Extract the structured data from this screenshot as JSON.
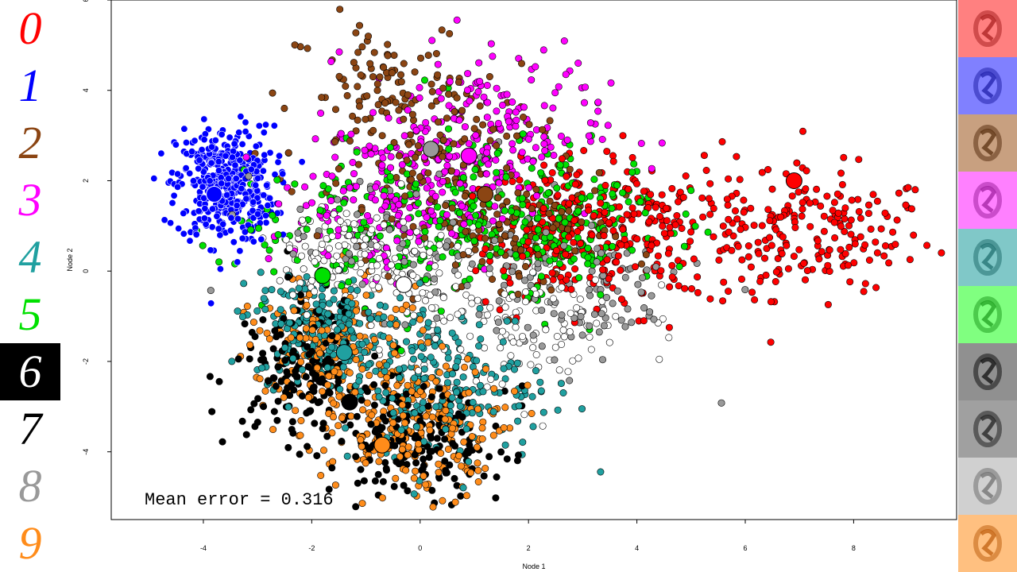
{
  "digit_labels": [
    {
      "digit": "0",
      "color": "#ff0000",
      "background": "#ffffff"
    },
    {
      "digit": "1",
      "color": "#0000ff",
      "background": "#ffffff"
    },
    {
      "digit": "2",
      "color": "#8b4513",
      "background": "#ffffff"
    },
    {
      "digit": "3",
      "color": "#ff00ff",
      "background": "#ffffff"
    },
    {
      "digit": "4",
      "color": "#20a0a0",
      "background": "#ffffff"
    },
    {
      "digit": "5",
      "color": "#00e000",
      "background": "#ffffff"
    },
    {
      "digit": "6",
      "color": "#ffffff",
      "background": "#000000"
    },
    {
      "digit": "7",
      "color": "#000000",
      "background": "#ffffff"
    },
    {
      "digit": "8",
      "color": "#999999",
      "background": "#ffffff"
    },
    {
      "digit": "9",
      "color": "#ff8c1a",
      "background": "#ffffff"
    }
  ],
  "prototype_tiles": [
    {
      "background": "#ff8080",
      "ink": "#aa2020"
    },
    {
      "background": "#8080ff",
      "ink": "#2020aa"
    },
    {
      "background": "#c8a080",
      "ink": "#5a3010"
    },
    {
      "background": "#ff80ff",
      "ink": "#a020a0"
    },
    {
      "background": "#80c8c8",
      "ink": "#207070"
    },
    {
      "background": "#80ff80",
      "ink": "#20a020"
    },
    {
      "background": "#909090",
      "ink": "#101010"
    },
    {
      "background": "#a0a0a0",
      "ink": "#202020"
    },
    {
      "background": "#d0d0d0",
      "ink": "#707070"
    },
    {
      "background": "#ffc080",
      "ink": "#c06010"
    }
  ],
  "annotation": "Mean error = 0.316",
  "chart_data": {
    "type": "scatter",
    "title": "",
    "xlabel": "Node 1",
    "ylabel": "Node 2",
    "xlim": [
      -5.7,
      9.9
    ],
    "ylim": [
      -5.5,
      6.0
    ],
    "xticks": [
      -4,
      -2,
      0,
      2,
      4,
      6,
      8
    ],
    "yticks": [
      -4,
      -2,
      0,
      2,
      4,
      6
    ],
    "grid": false,
    "legend": "none",
    "series": [
      {
        "color": "#ff0000",
        "centroid": [
          6.9,
          2.0
        ],
        "spread": [
          1.4,
          0.85
        ],
        "n": 520,
        "clusters": [
          [
            4.5,
            1.0,
            1.2,
            0.8
          ],
          [
            7.5,
            0.8,
            1.0,
            0.7
          ],
          [
            2.8,
            0.8,
            0.8,
            0.8
          ]
        ]
      },
      {
        "color": "#0000ff",
        "centroid": [
          -3.8,
          1.7
        ],
        "spread": [
          0.45,
          0.6
        ],
        "n": 420,
        "clusters": [
          [
            -3.6,
            1.9,
            0.45,
            0.65
          ]
        ]
      },
      {
        "color": "#8b4513",
        "centroid": [
          1.2,
          1.7
        ],
        "spread": [
          1.1,
          1.0
        ],
        "n": 360,
        "clusters": [
          [
            -0.5,
            4.0,
            0.9,
            0.8
          ],
          [
            0.5,
            2.0,
            1.2,
            1.0
          ],
          [
            2.0,
            0.8,
            0.8,
            0.6
          ]
        ]
      },
      {
        "color": "#ff00ff",
        "centroid": [
          0.9,
          2.55
        ],
        "spread": [
          1.0,
          1.0
        ],
        "n": 380,
        "clusters": [
          [
            1.2,
            3.2,
            1.1,
            0.9
          ],
          [
            -0.5,
            1.5,
            0.9,
            0.8
          ]
        ]
      },
      {
        "color": "#20a0a0",
        "centroid": [
          -1.4,
          -1.8
        ],
        "spread": [
          0.9,
          0.9
        ],
        "n": 430,
        "clusters": [
          [
            0.5,
            -2.5,
            1.0,
            0.9
          ],
          [
            -1.8,
            -1.2,
            0.6,
            0.6
          ]
        ]
      },
      {
        "color": "#00e000",
        "centroid": [
          -1.8,
          -0.1
        ],
        "spread": [
          1.2,
          0.9
        ],
        "n": 380,
        "clusters": [
          [
            -0.5,
            1.0,
            1.6,
            0.9
          ],
          [
            2.5,
            1.2,
            1.0,
            0.8
          ]
        ]
      },
      {
        "color": "#ffffff",
        "centroid": [
          -0.3,
          -0.3
        ],
        "spread": [
          1.2,
          0.8
        ],
        "n": 320,
        "clusters": [
          [
            1.5,
            -1.0,
            1.2,
            0.8
          ],
          [
            -1.0,
            0.3,
            0.8,
            0.6
          ]
        ]
      },
      {
        "color": "#000000",
        "centroid": [
          -1.3,
          -2.9
        ],
        "spread": [
          0.8,
          0.8
        ],
        "n": 360,
        "clusters": [
          [
            -2.2,
            -2.2,
            0.6,
            0.8
          ],
          [
            0.0,
            -3.8,
            0.8,
            0.6
          ]
        ]
      },
      {
        "color": "#999999",
        "centroid": [
          0.2,
          2.7
        ],
        "spread": [
          1.2,
          1.0
        ],
        "n": 200,
        "clusters": [
          [
            0.0,
            0.5,
            1.4,
            1.0
          ],
          [
            3.0,
            -0.5,
            1.0,
            0.8
          ]
        ]
      },
      {
        "color": "#ff8c1a",
        "centroid": [
          -0.7,
          -3.85
        ],
        "spread": [
          0.8,
          0.7
        ],
        "n": 400,
        "clusters": [
          [
            -1.5,
            -2.0,
            0.8,
            0.9
          ],
          [
            0.0,
            -3.5,
            0.8,
            0.7
          ]
        ]
      }
    ]
  }
}
